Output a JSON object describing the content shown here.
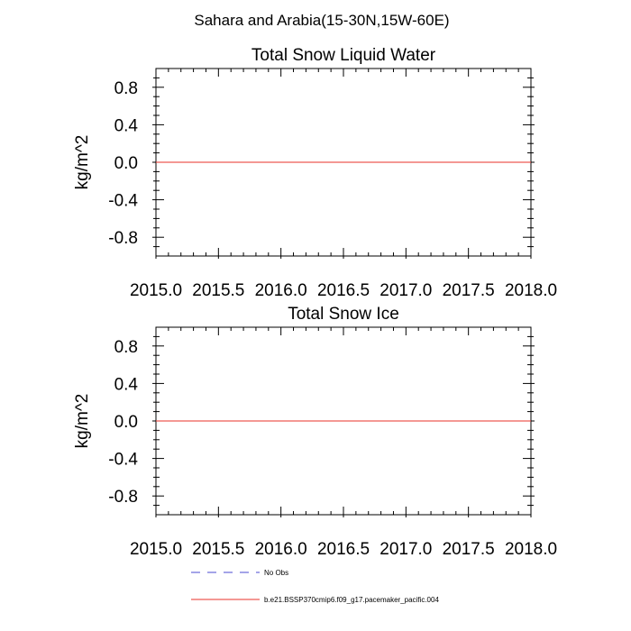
{
  "figure": {
    "suptitle": "Sahara and Arabia(15-30N,15W-60E)"
  },
  "colors": {
    "frame": "#000000",
    "model_line": "#e8302a",
    "obs_line": "#4a4ad0"
  },
  "legend": {
    "placement": "bottom",
    "entries": [
      {
        "label": "No Obs",
        "style": "dashed",
        "color": "#4a4ad0"
      },
      {
        "label": "b.e21.BSSP370cmip6.f09_g17.pacemaker_pacific.004",
        "style": "solid",
        "color": "#e8302a"
      }
    ]
  },
  "chart_data": [
    {
      "type": "line",
      "title": "Total Snow Liquid Water",
      "xlabel": "",
      "ylabel": "kg/m^2",
      "xlim": [
        2015.0,
        2018.0
      ],
      "ylim": [
        -1.0,
        1.0
      ],
      "xticks": [
        2015.0,
        2015.5,
        2016.0,
        2016.5,
        2017.0,
        2017.5,
        2018.0
      ],
      "xtick_labels": [
        "2015.0",
        "2015.5",
        "2016.0",
        "2016.5",
        "2017.0",
        "2017.5",
        "2018.0"
      ],
      "yticks": [
        0.8,
        0.4,
        0.0,
        -0.4,
        -0.8
      ],
      "ytick_labels": [
        "0.8",
        "0.4",
        "0.0",
        "-0.4",
        "-0.8"
      ],
      "grid": false,
      "series": [
        {
          "name": "b.e21.BSSP370cmip6.f09_g17.pacemaker_pacific.004",
          "x": [
            2015.0,
            2018.0
          ],
          "y": [
            0.0,
            0.0
          ],
          "color": "#e8302a"
        }
      ]
    },
    {
      "type": "line",
      "title": "Total Snow Ice",
      "xlabel": "",
      "ylabel": "kg/m^2",
      "xlim": [
        2015.0,
        2018.0
      ],
      "ylim": [
        -1.0,
        1.0
      ],
      "xticks": [
        2015.0,
        2015.5,
        2016.0,
        2016.5,
        2017.0,
        2017.5,
        2018.0
      ],
      "xtick_labels": [
        "2015.0",
        "2015.5",
        "2016.0",
        "2016.5",
        "2017.0",
        "2017.5",
        "2018.0"
      ],
      "yticks": [
        0.8,
        0.4,
        0.0,
        -0.4,
        -0.8
      ],
      "ytick_labels": [
        "0.8",
        "0.4",
        "0.0",
        "-0.4",
        "-0.8"
      ],
      "grid": false,
      "series": [
        {
          "name": "b.e21.BSSP370cmip6.f09_g17.pacemaker_pacific.004",
          "x": [
            2015.0,
            2018.0
          ],
          "y": [
            0.0,
            0.0
          ],
          "color": "#e8302a"
        }
      ]
    }
  ]
}
